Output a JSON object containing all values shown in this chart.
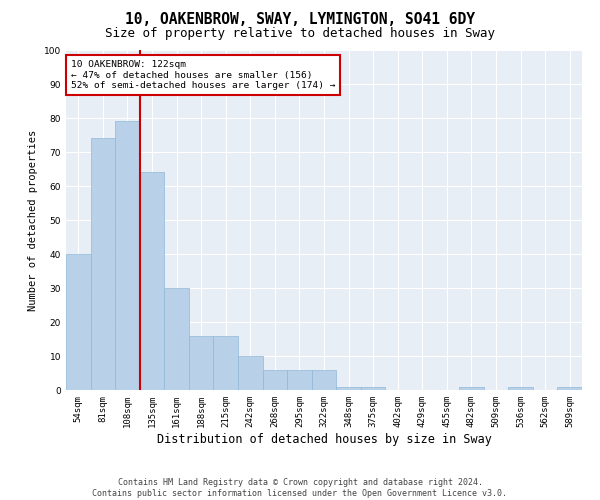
{
  "title1": "10, OAKENBROW, SWAY, LYMINGTON, SO41 6DY",
  "title2": "Size of property relative to detached houses in Sway",
  "xlabel": "Distribution of detached houses by size in Sway",
  "ylabel": "Number of detached properties",
  "categories": [
    "54sqm",
    "81sqm",
    "108sqm",
    "135sqm",
    "161sqm",
    "188sqm",
    "215sqm",
    "242sqm",
    "268sqm",
    "295sqm",
    "322sqm",
    "348sqm",
    "375sqm",
    "402sqm",
    "429sqm",
    "455sqm",
    "482sqm",
    "509sqm",
    "536sqm",
    "562sqm",
    "589sqm"
  ],
  "values": [
    40,
    74,
    79,
    64,
    30,
    16,
    16,
    10,
    6,
    6,
    6,
    1,
    1,
    0,
    0,
    0,
    1,
    0,
    1,
    0,
    1
  ],
  "bar_color": "#b8d0e8",
  "bar_edge_color": "#90b8d8",
  "vline_x": 2.5,
  "vline_color": "#cc0000",
  "ylim": [
    0,
    100
  ],
  "yticks": [
    0,
    10,
    20,
    30,
    40,
    50,
    60,
    70,
    80,
    90,
    100
  ],
  "annotation_text": "10 OAKENBROW: 122sqm\n← 47% of detached houses are smaller (156)\n52% of semi-detached houses are larger (174) →",
  "annotation_box_color": "#ffffff",
  "annotation_box_edge": "#cc0000",
  "footer1": "Contains HM Land Registry data © Crown copyright and database right 2024.",
  "footer2": "Contains public sector information licensed under the Open Government Licence v3.0.",
  "bg_color": "#ffffff",
  "plot_bg_color": "#e8eef5",
  "grid_color": "#ffffff",
  "title1_fontsize": 10.5,
  "title2_fontsize": 9,
  "xlabel_fontsize": 8.5,
  "ylabel_fontsize": 7.5,
  "tick_fontsize": 6.5,
  "annotation_fontsize": 6.8,
  "footer_fontsize": 6.0
}
